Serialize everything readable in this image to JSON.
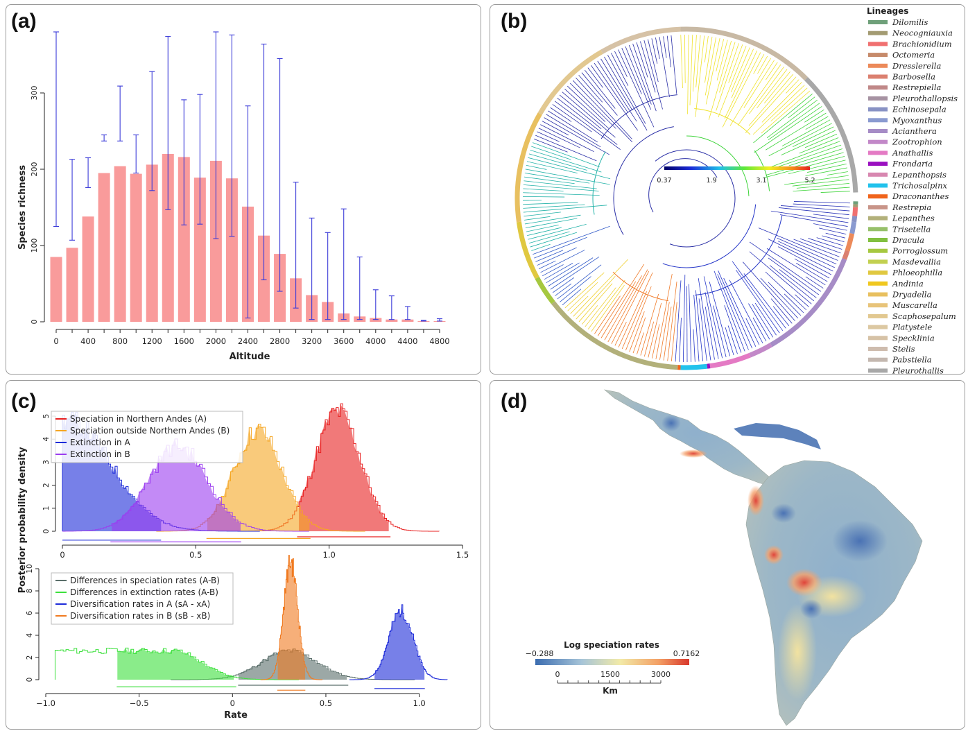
{
  "panels": {
    "a": {
      "label": "(a)"
    },
    "b": {
      "label": "(b)"
    },
    "c": {
      "label": "(c)"
    },
    "d": {
      "label": "(d)"
    }
  },
  "chart_data": [
    {
      "panel": "a",
      "type": "bar",
      "xlabel": "Altitude",
      "ylabel": "Species richness",
      "ylim": [
        0,
        380
      ],
      "yticks": [
        0,
        100,
        200,
        300
      ],
      "xtick_labels": [
        "0",
        "400",
        "800",
        "1200",
        "1600",
        "2000",
        "2400",
        "2800",
        "3200",
        "3600",
        "4000",
        "4400",
        "4800"
      ],
      "categories": [
        "0",
        "200",
        "400",
        "600",
        "800",
        "1000",
        "1200",
        "1400",
        "1600",
        "1800",
        "2000",
        "2200",
        "2400",
        "2600",
        "2800",
        "3000",
        "3200",
        "3400",
        "3600",
        "3800",
        "4000",
        "4200",
        "4400",
        "4600",
        "4800"
      ],
      "values": [
        85,
        97,
        138,
        195,
        204,
        194,
        206,
        220,
        216,
        189,
        211,
        188,
        151,
        113,
        89,
        57,
        35,
        26,
        11,
        7,
        5,
        3,
        3,
        1,
        1
      ],
      "error_low": [
        125,
        107,
        176,
        237,
        237,
        195,
        172,
        147,
        127,
        128,
        109,
        112,
        5,
        55,
        40,
        18,
        3,
        3,
        3,
        3,
        3,
        3,
        3,
        1,
        1
      ],
      "error_high": [
        380,
        213,
        215,
        245,
        309,
        245,
        328,
        374,
        291,
        298,
        380,
        376,
        283,
        364,
        345,
        183,
        136,
        117,
        148,
        85,
        42,
        34,
        20,
        2,
        4
      ],
      "colors": {
        "bar": "#f99b9b",
        "error": "#3a3ad8"
      }
    },
    {
      "panel": "c-top",
      "type": "area",
      "ylabel": "Posterior probability density",
      "xlim": [
        0,
        1.5
      ],
      "ylim": [
        0,
        5
      ],
      "xticks": [
        0,
        0.5,
        1.0,
        1.5
      ],
      "xtick_labels": [
        "0",
        "0.5",
        "1.0",
        "1.5"
      ],
      "ytick_labels": [
        "0",
        "1",
        "2",
        "3",
        "4",
        "5"
      ],
      "legend": "top-left",
      "series": [
        {
          "name": "Speciation in Northern Andes (A)",
          "color": "#e82020",
          "peak_x": 1.03,
          "peak_y": 5.2,
          "sd": 0.085,
          "hpd": [
            0.88,
            1.23
          ]
        },
        {
          "name": "Speciation outside Northern Andes (B)",
          "color": "#f5a623",
          "peak_x": 0.73,
          "peak_y": 4.4,
          "sd": 0.09,
          "hpd": [
            0.54,
            0.93
          ]
        },
        {
          "name": "Extinction in A",
          "color": "#1d2bd9",
          "peak_x": 0.02,
          "peak_y": 4.8,
          "sd": 0.16,
          "hpd": [
            0.0,
            0.37
          ]
        },
        {
          "name": "Extinction in B",
          "color": "#9b3cf0",
          "peak_x": 0.43,
          "peak_y": 3.7,
          "sd": 0.11,
          "hpd": [
            0.18,
            0.67
          ]
        }
      ]
    },
    {
      "panel": "c-bottom",
      "type": "area",
      "xlabel": "Rate",
      "xlim": [
        -1.0,
        1.15
      ],
      "ylim": [
        0,
        10
      ],
      "xticks": [
        -1.0,
        -0.5,
        0,
        0.5,
        1.0
      ],
      "xtick_labels": [
        "−1.0",
        "−0.5",
        "0",
        "0.5",
        "1.0"
      ],
      "ytick_labels": [
        "0",
        "2",
        "4",
        "6",
        "8",
        "10"
      ],
      "legend": "top-left",
      "series": [
        {
          "name": "Differences in speciation rates (A-B)",
          "color": "#5a6e6a",
          "peak_x": 0.3,
          "peak_y": 2.6,
          "sd": 0.15,
          "hpd": [
            0.03,
            0.62
          ]
        },
        {
          "name": "Differences in extinction rates (A-B)",
          "color": "#3ce03c",
          "peak_x": -0.32,
          "peak_y": 2.6,
          "sd": 0.15,
          "hpd": [
            -0.62,
            0.02
          ]
        },
        {
          "name": "Diversification rates in A (sA - xA)",
          "color": "#1d2bd9",
          "peak_x": 0.9,
          "peak_y": 6.2,
          "sd": 0.065,
          "hpd": [
            0.76,
            1.03
          ]
        },
        {
          "name": "Diversification rates in B (sB - xB)",
          "color": "#f07a20",
          "peak_x": 0.31,
          "peak_y": 10.6,
          "sd": 0.038,
          "hpd": [
            0.24,
            0.39
          ]
        }
      ]
    }
  ],
  "tree": {
    "colorbar_ticks": [
      "0.37",
      "1.9",
      "3.1",
      "5.2"
    ],
    "legend_title": "Lineages",
    "lineages": [
      {
        "name": "Dilomilis",
        "color": "#6fa07a"
      },
      {
        "name": "Neocogniauxia",
        "color": "#a39b72"
      },
      {
        "name": "Brachionidium",
        "color": "#f07070"
      },
      {
        "name": "Octomeria",
        "color": "#c68a6a"
      },
      {
        "name": "Dresslerella",
        "color": "#ec8a5a"
      },
      {
        "name": "Barbosella",
        "color": "#db8070"
      },
      {
        "name": "Restrepiella",
        "color": "#c08888"
      },
      {
        "name": "Pleurothallopsis",
        "color": "#a692a2"
      },
      {
        "name": "Echinosepala",
        "color": "#8892c4"
      },
      {
        "name": "Myoxanthus",
        "color": "#8a9ad0"
      },
      {
        "name": "Acianthera",
        "color": "#a68cc6"
      },
      {
        "name": "Zootrophion",
        "color": "#c288c8"
      },
      {
        "name": "Anathallis",
        "color": "#e47ac4"
      },
      {
        "name": "Frondaria",
        "color": "#9a10c0"
      },
      {
        "name": "Lepanthopsis",
        "color": "#d888b0"
      },
      {
        "name": "Trichosalpinx",
        "color": "#22c2ec"
      },
      {
        "name": "Draconanthes",
        "color": "#f0641c"
      },
      {
        "name": "Restrepia",
        "color": "#c89488"
      },
      {
        "name": "Lepanthes",
        "color": "#b2b07a"
      },
      {
        "name": "Trisetella",
        "color": "#96c06a"
      },
      {
        "name": "Dracula",
        "color": "#82c040"
      },
      {
        "name": "Porroglossum",
        "color": "#a6c840"
      },
      {
        "name": "Masdevallia",
        "color": "#c2d050"
      },
      {
        "name": "Phloeophilla",
        "color": "#e0c840"
      },
      {
        "name": "Andinia",
        "color": "#f0c820"
      },
      {
        "name": "Dryadella",
        "color": "#e8c060"
      },
      {
        "name": "Muscarella",
        "color": "#e8c47a"
      },
      {
        "name": "Scaphosepalum",
        "color": "#e2c890"
      },
      {
        "name": "Platystele",
        "color": "#dcc8a2"
      },
      {
        "name": "Specklinia",
        "color": "#d6c2a6"
      },
      {
        "name": "Stelis",
        "color": "#cebcae"
      },
      {
        "name": "Pabstiella",
        "color": "#c4b8b0"
      },
      {
        "name": "Pleurothallis",
        "color": "#a8a8a8"
      }
    ]
  },
  "map": {
    "legend_title": "Log speciation rates",
    "min_label": "−0.288",
    "max_label": "0.7162",
    "scale_labels": [
      "0",
      "1500",
      "3000"
    ],
    "scale_unit": "Km"
  }
}
